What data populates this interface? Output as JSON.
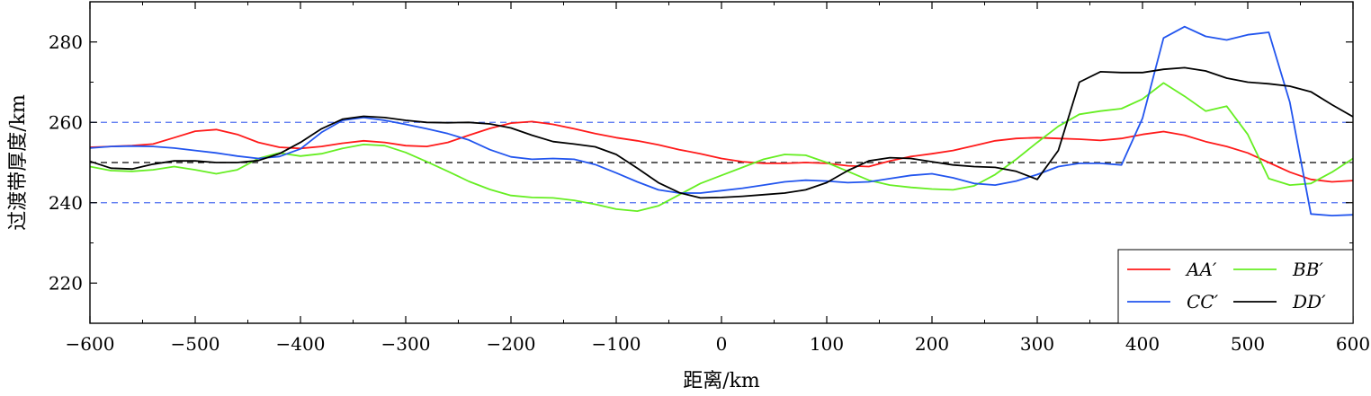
{
  "chart_data": {
    "type": "line",
    "title": "",
    "xlabel": "距离/km",
    "ylabel": "过渡带厚度/km",
    "xlim": [
      -600,
      600
    ],
    "ylim": [
      210,
      290
    ],
    "xticks": [
      -600,
      -500,
      -400,
      -300,
      -200,
      -100,
      0,
      100,
      200,
      300,
      400,
      500,
      600
    ],
    "xtick_labels": [
      "−600",
      "−500",
      "−400",
      "−300",
      "−200",
      "−100",
      "0",
      "100",
      "200",
      "300",
      "400",
      "500",
      "600"
    ],
    "yticks": [
      220,
      240,
      260,
      280
    ],
    "ytick_labels": [
      "220",
      "240",
      "260",
      "280"
    ],
    "reference_lines": [
      {
        "y": 240,
        "color": "#4f6ff0",
        "style": "dashed"
      },
      {
        "y": 250,
        "color": "#000000",
        "style": "dashed"
      },
      {
        "y": 260,
        "color": "#4f6ff0",
        "style": "dashed"
      }
    ],
    "legend_position": "bottom-right",
    "legend_columns": 2,
    "grid": false,
    "series": [
      {
        "name": "AA′",
        "color": "#ff1a1a",
        "points": [
          [
            -600,
            253.8
          ],
          [
            -580,
            254.0
          ],
          [
            -560,
            254.2
          ],
          [
            -540,
            254.6
          ],
          [
            -520,
            256.2
          ],
          [
            -500,
            257.8
          ],
          [
            -480,
            258.2
          ],
          [
            -460,
            257.0
          ],
          [
            -440,
            255.0
          ],
          [
            -420,
            253.8
          ],
          [
            -400,
            253.5
          ],
          [
            -380,
            254.0
          ],
          [
            -360,
            254.8
          ],
          [
            -340,
            255.4
          ],
          [
            -320,
            255.0
          ],
          [
            -300,
            254.2
          ],
          [
            -280,
            254.0
          ],
          [
            -260,
            255.0
          ],
          [
            -240,
            256.8
          ],
          [
            -220,
            258.5
          ],
          [
            -200,
            259.8
          ],
          [
            -180,
            260.2
          ],
          [
            -160,
            259.5
          ],
          [
            -140,
            258.4
          ],
          [
            -120,
            257.2
          ],
          [
            -100,
            256.2
          ],
          [
            -80,
            255.4
          ],
          [
            -60,
            254.4
          ],
          [
            -40,
            253.2
          ],
          [
            -20,
            252.2
          ],
          [
            0,
            251.0
          ],
          [
            20,
            250.2
          ],
          [
            40,
            249.8
          ],
          [
            60,
            249.8
          ],
          [
            80,
            250.0
          ],
          [
            100,
            249.8
          ],
          [
            120,
            249.2
          ],
          [
            140,
            249.0
          ],
          [
            160,
            250.4
          ],
          [
            180,
            251.5
          ],
          [
            200,
            252.2
          ],
          [
            220,
            253.0
          ],
          [
            240,
            254.2
          ],
          [
            260,
            255.4
          ],
          [
            280,
            256.0
          ],
          [
            300,
            256.2
          ],
          [
            320,
            256.0
          ],
          [
            340,
            255.8
          ],
          [
            360,
            255.5
          ],
          [
            380,
            256.0
          ],
          [
            400,
            257.0
          ],
          [
            420,
            257.7
          ],
          [
            440,
            256.8
          ],
          [
            460,
            255.2
          ],
          [
            480,
            254.0
          ],
          [
            500,
            252.4
          ],
          [
            520,
            250.0
          ],
          [
            540,
            247.6
          ],
          [
            560,
            245.8
          ],
          [
            580,
            245.2
          ],
          [
            600,
            245.5
          ]
        ]
      },
      {
        "name": "BB′",
        "color": "#66ee22",
        "points": [
          [
            -600,
            249.0
          ],
          [
            -580,
            248.0
          ],
          [
            -560,
            247.8
          ],
          [
            -540,
            248.2
          ],
          [
            -520,
            249.0
          ],
          [
            -500,
            248.2
          ],
          [
            -480,
            247.2
          ],
          [
            -460,
            248.2
          ],
          [
            -440,
            251.0
          ],
          [
            -420,
            252.4
          ],
          [
            -400,
            251.6
          ],
          [
            -380,
            252.2
          ],
          [
            -360,
            253.5
          ],
          [
            -340,
            254.5
          ],
          [
            -320,
            254.2
          ],
          [
            -300,
            252.5
          ],
          [
            -280,
            250.2
          ],
          [
            -260,
            247.8
          ],
          [
            -240,
            245.3
          ],
          [
            -220,
            243.3
          ],
          [
            -200,
            241.8
          ],
          [
            -180,
            241.3
          ],
          [
            -160,
            241.2
          ],
          [
            -140,
            240.6
          ],
          [
            -120,
            239.6
          ],
          [
            -100,
            238.4
          ],
          [
            -80,
            237.9
          ],
          [
            -60,
            239.2
          ],
          [
            -40,
            242.0
          ],
          [
            -20,
            244.8
          ],
          [
            0,
            246.8
          ],
          [
            20,
            248.8
          ],
          [
            40,
            250.8
          ],
          [
            60,
            252.0
          ],
          [
            80,
            251.8
          ],
          [
            100,
            250.0
          ],
          [
            120,
            247.8
          ],
          [
            140,
            245.6
          ],
          [
            160,
            244.4
          ],
          [
            180,
            243.8
          ],
          [
            200,
            243.4
          ],
          [
            220,
            243.2
          ],
          [
            240,
            244.2
          ],
          [
            260,
            247.0
          ],
          [
            280,
            250.8
          ],
          [
            300,
            255.0
          ],
          [
            320,
            259.0
          ],
          [
            340,
            262.0
          ],
          [
            360,
            262.8
          ],
          [
            380,
            263.4
          ],
          [
            400,
            265.8
          ],
          [
            420,
            269.8
          ],
          [
            440,
            266.5
          ],
          [
            460,
            262.8
          ],
          [
            480,
            264.0
          ],
          [
            500,
            257.0
          ],
          [
            520,
            246.0
          ],
          [
            540,
            244.4
          ],
          [
            560,
            244.8
          ],
          [
            580,
            247.6
          ],
          [
            600,
            251.0
          ]
        ]
      },
      {
        "name": "CC′",
        "color": "#2255ee",
        "points": [
          [
            -600,
            253.6
          ],
          [
            -580,
            254.0
          ],
          [
            -560,
            254.1
          ],
          [
            -540,
            254.0
          ],
          [
            -520,
            253.6
          ],
          [
            -500,
            253.0
          ],
          [
            -480,
            252.4
          ],
          [
            -460,
            251.6
          ],
          [
            -440,
            251.0
          ],
          [
            -420,
            251.5
          ],
          [
            -400,
            253.4
          ],
          [
            -380,
            257.5
          ],
          [
            -360,
            260.5
          ],
          [
            -340,
            261.2
          ],
          [
            -320,
            260.5
          ],
          [
            -300,
            259.5
          ],
          [
            -280,
            258.4
          ],
          [
            -260,
            257.2
          ],
          [
            -240,
            255.6
          ],
          [
            -220,
            253.2
          ],
          [
            -200,
            251.4
          ],
          [
            -180,
            250.8
          ],
          [
            -160,
            251.0
          ],
          [
            -140,
            250.8
          ],
          [
            -120,
            249.5
          ],
          [
            -100,
            247.4
          ],
          [
            -80,
            245.2
          ],
          [
            -60,
            243.2
          ],
          [
            -40,
            242.4
          ],
          [
            -20,
            242.4
          ],
          [
            0,
            243.0
          ],
          [
            20,
            243.6
          ],
          [
            40,
            244.4
          ],
          [
            60,
            245.2
          ],
          [
            80,
            245.6
          ],
          [
            100,
            245.4
          ],
          [
            120,
            245.0
          ],
          [
            140,
            245.2
          ],
          [
            160,
            246.0
          ],
          [
            180,
            246.8
          ],
          [
            200,
            247.2
          ],
          [
            220,
            246.2
          ],
          [
            240,
            244.8
          ],
          [
            260,
            244.4
          ],
          [
            280,
            245.4
          ],
          [
            300,
            247.0
          ],
          [
            320,
            249.0
          ],
          [
            340,
            249.8
          ],
          [
            360,
            249.8
          ],
          [
            380,
            249.4
          ],
          [
            400,
            261.0
          ],
          [
            420,
            281.0
          ],
          [
            440,
            283.8
          ],
          [
            460,
            281.4
          ],
          [
            480,
            280.5
          ],
          [
            500,
            281.8
          ],
          [
            520,
            282.4
          ],
          [
            540,
            265.0
          ],
          [
            560,
            237.2
          ],
          [
            580,
            236.8
          ],
          [
            600,
            237.0
          ]
        ]
      },
      {
        "name": "DD′",
        "color": "#000000",
        "points": [
          [
            -600,
            250.3
          ],
          [
            -580,
            248.6
          ],
          [
            -560,
            248.4
          ],
          [
            -540,
            249.6
          ],
          [
            -520,
            250.4
          ],
          [
            -500,
            250.4
          ],
          [
            -480,
            250.0
          ],
          [
            -460,
            250.0
          ],
          [
            -440,
            250.5
          ],
          [
            -420,
            252.2
          ],
          [
            -400,
            255.0
          ],
          [
            -380,
            258.4
          ],
          [
            -360,
            260.8
          ],
          [
            -340,
            261.5
          ],
          [
            -320,
            261.2
          ],
          [
            -300,
            260.5
          ],
          [
            -280,
            260.0
          ],
          [
            -260,
            259.9
          ],
          [
            -240,
            260.0
          ],
          [
            -220,
            259.6
          ],
          [
            -200,
            258.6
          ],
          [
            -180,
            256.8
          ],
          [
            -160,
            255.2
          ],
          [
            -140,
            254.6
          ],
          [
            -120,
            253.9
          ],
          [
            -100,
            252.0
          ],
          [
            -80,
            248.6
          ],
          [
            -60,
            245.0
          ],
          [
            -40,
            242.5
          ],
          [
            -20,
            241.2
          ],
          [
            0,
            241.3
          ],
          [
            20,
            241.6
          ],
          [
            40,
            242.0
          ],
          [
            60,
            242.4
          ],
          [
            80,
            243.2
          ],
          [
            100,
            245.0
          ],
          [
            120,
            248.0
          ],
          [
            140,
            250.4
          ],
          [
            160,
            251.2
          ],
          [
            180,
            251.0
          ],
          [
            200,
            250.2
          ],
          [
            220,
            249.4
          ],
          [
            240,
            249.0
          ],
          [
            260,
            248.8
          ],
          [
            280,
            247.8
          ],
          [
            300,
            245.8
          ],
          [
            320,
            253.0
          ],
          [
            340,
            270.0
          ],
          [
            360,
            272.6
          ],
          [
            380,
            272.4
          ],
          [
            400,
            272.4
          ],
          [
            420,
            273.2
          ],
          [
            440,
            273.6
          ],
          [
            460,
            272.8
          ],
          [
            480,
            271.0
          ],
          [
            500,
            270.0
          ],
          [
            520,
            269.6
          ],
          [
            540,
            269.0
          ],
          [
            560,
            267.6
          ],
          [
            580,
            264.4
          ],
          [
            600,
            261.4
          ]
        ]
      }
    ]
  }
}
